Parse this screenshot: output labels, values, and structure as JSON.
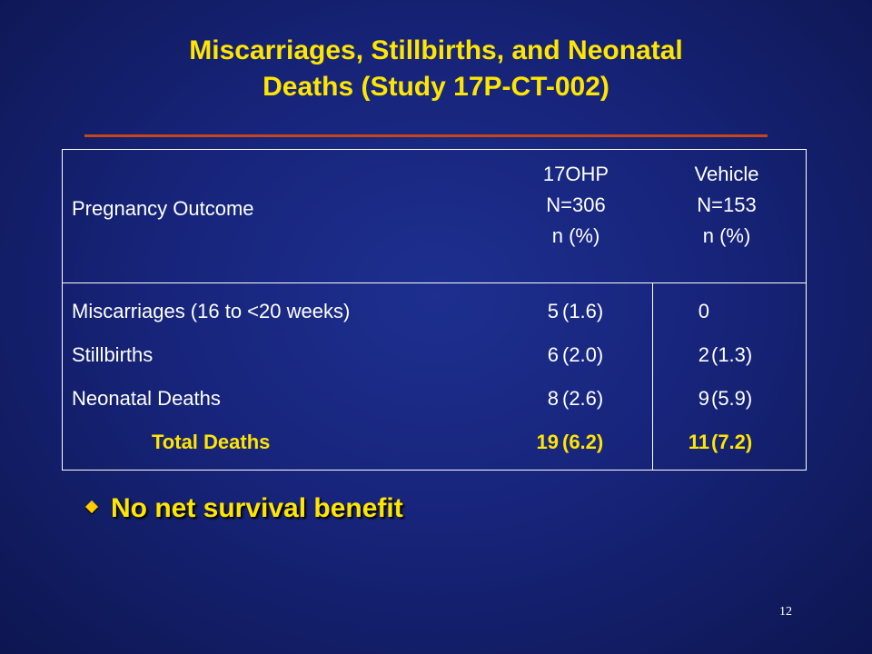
{
  "slide": {
    "title_line1": "Miscarriages, Stillbirths, and Neonatal",
    "title_line2": "Deaths (Study 17P-CT-002)",
    "page_number": "12",
    "bullet": "No net survival benefit"
  },
  "table": {
    "header": {
      "outcome": "Pregnancy Outcome",
      "col1": [
        "17OHP",
        "N=306",
        "n  (%)"
      ],
      "col2": [
        "Vehicle",
        "N=153",
        "n  (%)"
      ]
    },
    "rows": [
      {
        "label": "Miscarriages (16 to <20 weeks)",
        "n1": "5",
        "p1": "(1.6)",
        "n2": "0",
        "p2": ""
      },
      {
        "label": "Stillbirths",
        "n1": "6",
        "p1": "(2.0)",
        "n2": "2",
        "p2": "(1.3)"
      },
      {
        "label": "Neonatal Deaths",
        "n1": "8",
        "p1": "(2.6)",
        "n2": "9",
        "p2": "(5.9)"
      },
      {
        "label": "Total Deaths",
        "n1": "19",
        "p1": "(6.2)",
        "n2": "11",
        "p2": "(7.2)"
      }
    ]
  },
  "colors": {
    "title": "#ffe600",
    "accent_rule": "#c8441a",
    "background": "#17247a",
    "table_text": "#ffffff"
  },
  "icons": {
    "bullet": "diamond-bullet-icon"
  }
}
